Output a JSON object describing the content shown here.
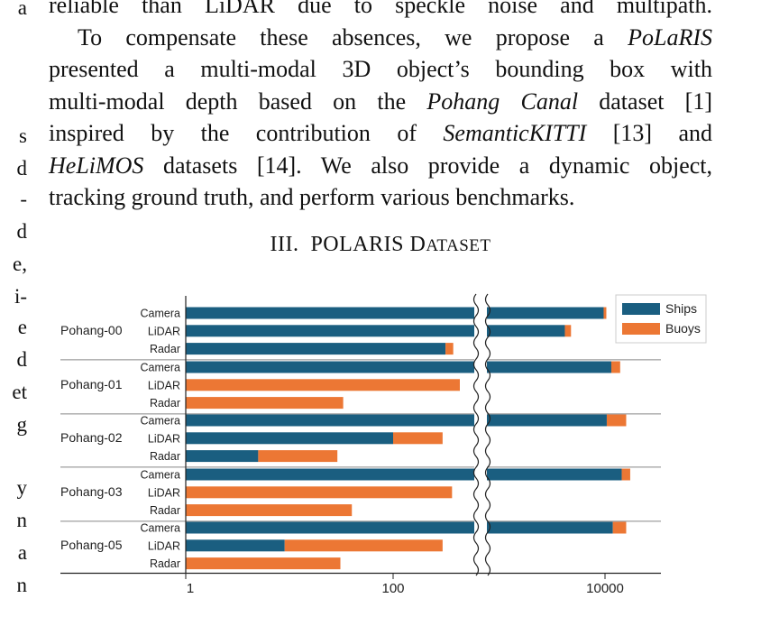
{
  "left_column": {
    "letters": [
      "a",
      "s",
      "d",
      "-",
      "d",
      "e,",
      "i-",
      "e",
      "d",
      "et",
      "g",
      "y",
      "n",
      "a",
      "n"
    ]
  },
  "paragraph": {
    "line1": "reliable than LiDAR due to speckle noise and multipath.",
    "line2": [
      {
        "t": "To compensate these absences, we propose a ",
        "i": false
      },
      {
        "t": "PoLaRIS",
        "i": true
      }
    ],
    "line3": "presented a multi-modal 3D object’s bounding box with",
    "line4": [
      {
        "t": "multi-modal depth based on the ",
        "i": false
      },
      {
        "t": "Pohang Canal",
        "i": true
      },
      {
        "t": " dataset [1]",
        "i": false
      }
    ],
    "line5": [
      {
        "t": "inspired by the contribution of ",
        "i": false
      },
      {
        "t": "SemanticKITTI",
        "i": true
      },
      {
        "t": " [13] and",
        "i": false
      }
    ],
    "line6": [
      {
        "t": "HeLiMOS",
        "i": true
      },
      {
        "t": " datasets [14]. We also provide a dynamic object,",
        "i": false
      }
    ],
    "line7": "tracking ground truth, and perform various benchmarks."
  },
  "section_heading": {
    "number": "III.",
    "title_main": "POLARIS D",
    "title_smallcaps": "ATASET"
  },
  "chart_data": {
    "type": "bar",
    "orientation": "horizontal",
    "stacked": true,
    "x_scale": "log",
    "x_axis_break": true,
    "xlim": [
      1,
      30000
    ],
    "x_ticks": [
      {
        "value": 1,
        "label": "1"
      },
      {
        "value": 100,
        "label": "100"
      },
      {
        "value": 10000,
        "label": "10000"
      }
    ],
    "legend": {
      "position": "top-right",
      "items": [
        {
          "name": "Ships",
          "color": "#1a5e80"
        },
        {
          "name": "Buoys",
          "color": "#ec7734"
        }
      ]
    },
    "groups": [
      {
        "name": "Pohang-00",
        "rows": [
          {
            "sensor": "Camera",
            "ships": 9700,
            "total": 10300
          },
          {
            "sensor": "LiDAR",
            "ships": 4100,
            "total": 4700
          },
          {
            "sensor": "Radar",
            "ships": 320,
            "total": 380
          }
        ]
      },
      {
        "name": "Pohang-01",
        "rows": [
          {
            "sensor": "Camera",
            "ships": 11500,
            "total": 14000
          },
          {
            "sensor": "LiDAR",
            "ships": 0,
            "total": 440
          },
          {
            "sensor": "Radar",
            "ships": 0,
            "total": 33
          }
        ]
      },
      {
        "name": "Pohang-02",
        "rows": [
          {
            "sensor": "Camera",
            "ships": 10400,
            "total": 16000
          },
          {
            "sensor": "LiDAR",
            "ships": 100,
            "total": 300
          },
          {
            "sensor": "Radar",
            "ships": 5,
            "total": 29
          }
        ]
      },
      {
        "name": "Pohang-03",
        "rows": [
          {
            "sensor": "Camera",
            "ships": 14500,
            "total": 17500
          },
          {
            "sensor": "LiDAR",
            "ships": 0,
            "total": 370
          },
          {
            "sensor": "Radar",
            "ships": 0,
            "total": 40
          }
        ]
      },
      {
        "name": "Pohang-05",
        "rows": [
          {
            "sensor": "Camera",
            "ships": 11900,
            "total": 16000
          },
          {
            "sensor": "LiDAR",
            "ships": 9,
            "total": 300
          },
          {
            "sensor": "Radar",
            "ships": 0,
            "total": 31
          }
        ]
      }
    ]
  }
}
